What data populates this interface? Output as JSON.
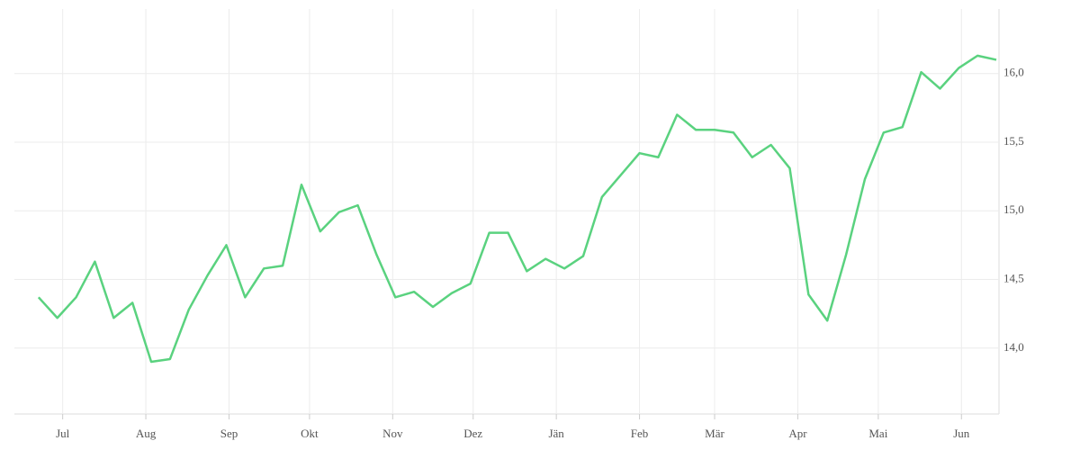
{
  "chart_data": {
    "type": "line",
    "x": [
      0,
      7,
      14,
      21,
      28,
      35,
      42,
      49,
      56,
      63,
      70,
      77,
      84,
      91,
      98,
      105,
      112,
      119,
      126,
      133,
      140,
      147,
      154,
      161,
      168,
      175,
      182,
      189,
      196,
      203,
      210,
      217,
      224,
      231,
      238,
      245,
      252,
      259,
      266,
      273,
      280,
      287,
      294,
      301,
      308,
      315,
      322,
      329,
      336,
      343,
      350,
      357
    ],
    "series": [
      {
        "color": "#5ad27f",
        "values": [
          14.37,
          14.22,
          14.37,
          14.63,
          14.22,
          14.33,
          13.9,
          13.92,
          14.28,
          14.53,
          14.75,
          14.37,
          14.58,
          14.6,
          15.19,
          14.85,
          14.99,
          15.04,
          14.68,
          14.37,
          14.41,
          14.3,
          14.4,
          14.47,
          14.84,
          14.84,
          14.56,
          14.65,
          14.58,
          14.67,
          15.1,
          15.26,
          15.42,
          15.39,
          15.7,
          15.59,
          15.59,
          15.57,
          15.39,
          15.48,
          15.31,
          14.39,
          14.2,
          14.68,
          15.23,
          15.57,
          15.61,
          16.01,
          15.89,
          16.04,
          16.13,
          16.1
        ]
      }
    ],
    "xlim": [
      -9,
      358
    ],
    "xticks": [
      {
        "value": 9,
        "label": "Jul"
      },
      {
        "value": 40,
        "label": "Aug"
      },
      {
        "value": 71,
        "label": "Sep"
      },
      {
        "value": 101,
        "label": "Okt"
      },
      {
        "value": 132,
        "label": "Nov"
      },
      {
        "value": 162,
        "label": "Dez"
      },
      {
        "value": 193,
        "label": "Jän"
      },
      {
        "value": 224,
        "label": "Feb"
      },
      {
        "value": 252,
        "label": "Mär"
      },
      {
        "value": 283,
        "label": "Apr"
      },
      {
        "value": 313,
        "label": "Mai"
      },
      {
        "value": 344,
        "label": "Jun"
      }
    ],
    "ylim": [
      13.52,
      16.47
    ],
    "yticks": [
      {
        "value": 14,
        "label": "14,0"
      },
      {
        "value": 14.5,
        "label": "14,5"
      },
      {
        "value": 15,
        "label": "15,0"
      },
      {
        "value": 15.5,
        "label": "15,5"
      },
      {
        "value": 16,
        "label": "16,0"
      }
    ],
    "grid": true
  }
}
